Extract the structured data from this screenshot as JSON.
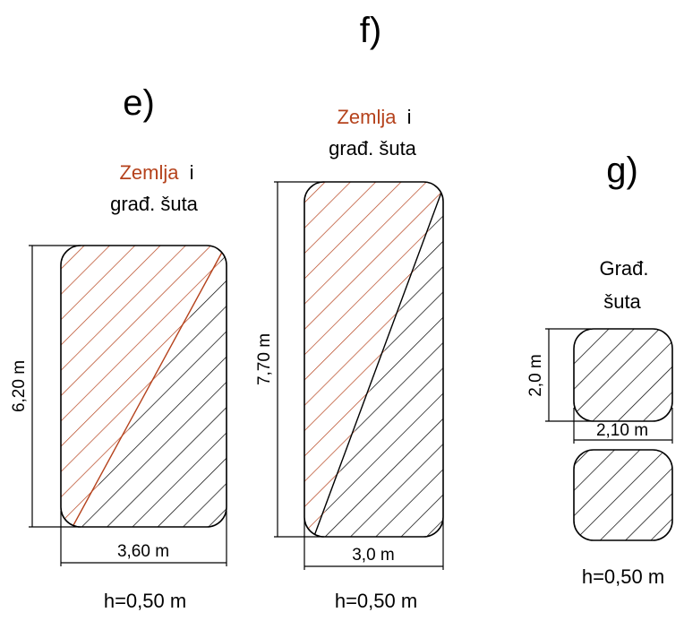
{
  "panels": {
    "e": {
      "letter": "e)",
      "material_soil": "Zemlja",
      "material_and": "i",
      "material_rubble": "građ. šuta",
      "height_dim": "6,20 m",
      "width_dim": "3,60 m",
      "depth": "h=0,50 m"
    },
    "f": {
      "letter": "f)",
      "material_soil": "Zemlja",
      "material_and": "i",
      "material_rubble": "građ. šuta",
      "height_dim": "7,70 m",
      "width_dim": "3,0 m",
      "depth": "h=0,50 m"
    },
    "g": {
      "letter": "g)",
      "material_line1": "Građ.",
      "material_line2": "šuta",
      "height_dim": "2,0 m",
      "width_dim": "2,10 m",
      "depth": "h=0,50 m"
    }
  },
  "colors": {
    "soil_hatch": "#b5421c",
    "rubble_hatch": "#000000",
    "outline": "#000000"
  }
}
